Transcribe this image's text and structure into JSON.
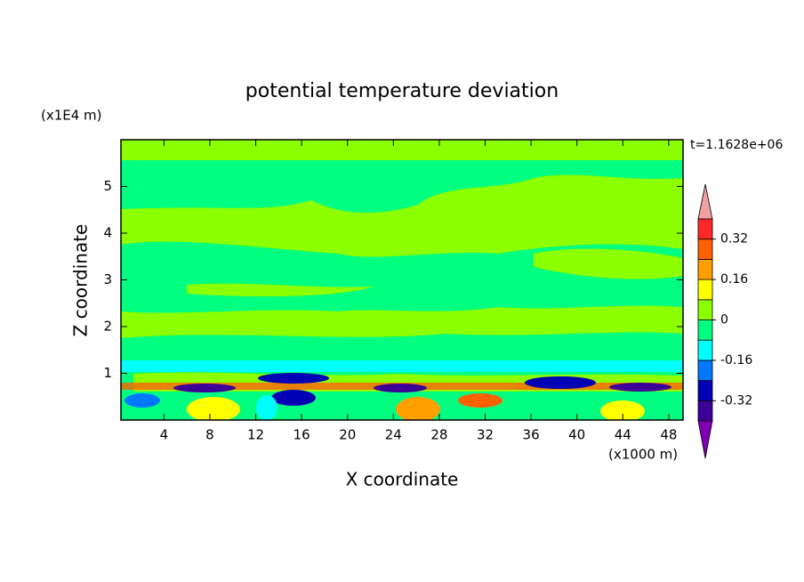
{
  "chart_data": {
    "type": "contourf",
    "title": "potential temperature deviation",
    "x_label": "X coordinate",
    "y_label": "Z coordinate",
    "x_unit": "(x1000 m)",
    "y_unit": "(x1E4 m)",
    "time_label": "t=1.1628e+06",
    "xlim": [
      0.25,
      49.25
    ],
    "xticks": [
      4,
      8,
      12,
      16,
      20,
      24,
      28,
      32,
      36,
      40,
      44,
      48
    ],
    "ylim": [
      0,
      6
    ],
    "yticks": [
      1,
      2,
      3,
      4,
      5
    ],
    "colorbar": {
      "lim": [
        -0.4,
        0.4
      ],
      "ticks": [
        -0.32,
        -0.16,
        0,
        0.16,
        0.32
      ],
      "colors": [
        "#3c0096",
        "#0000b4",
        "#0078ff",
        "#00ffff",
        "#00ff80",
        "#8cff00",
        "#ffff00",
        "#ffa000",
        "#ff6000",
        "#ff2828"
      ],
      "under_color": "#8000b4",
      "over_color": "#f0a0a0"
    }
  }
}
